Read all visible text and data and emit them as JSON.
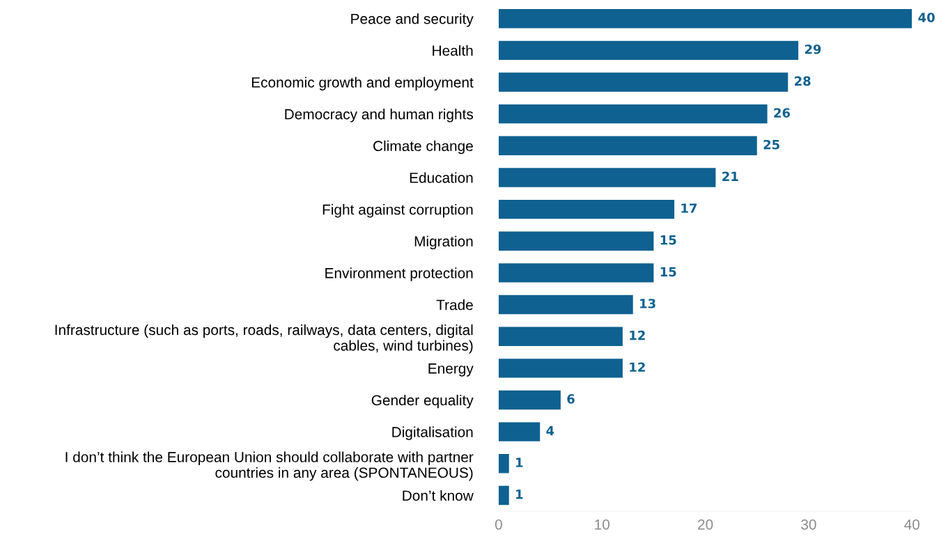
{
  "chart_data": {
    "type": "bar",
    "orientation": "horizontal",
    "categories": [
      "Peace and security",
      "Health",
      "Economic growth and employment",
      "Democracy and human rights",
      "Climate change",
      "Education",
      "Fight against corruption",
      "Migration",
      "Environment protection",
      "Trade",
      "Infrastructure (such as ports, roads, railways, data centers, digital\ncables, wind turbines)",
      "Energy",
      "Gender equality",
      "Digitalisation",
      "I don’t think the European Union should collaborate with partner\ncountries in any area (SPONTANEOUS)",
      "Don’t know"
    ],
    "values": [
      40,
      29,
      28,
      26,
      25,
      21,
      17,
      15,
      15,
      13,
      12,
      12,
      6,
      4,
      1,
      1
    ],
    "color": "#0e6190",
    "xlim": [
      0,
      40
    ],
    "xticks": [
      0,
      10,
      20,
      30,
      40
    ],
    "data_labels": true,
    "grid": false,
    "legend": false
  }
}
